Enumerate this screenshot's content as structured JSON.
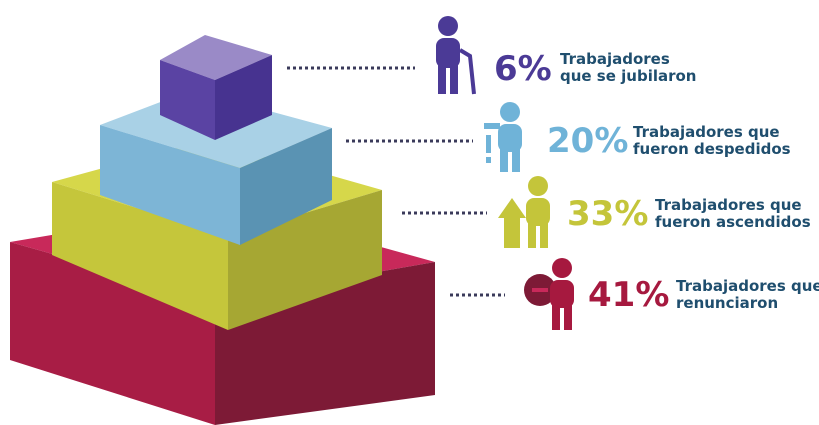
{
  "items": [
    {
      "value": "6%",
      "label": [
        "Trabajadores",
        "que se jubilaron"
      ]
    },
    {
      "value": "20%",
      "label": [
        "Trabajadores que",
        "fueron despedidos"
      ]
    },
    {
      "value": "33%",
      "label": [
        "Trabajadores que",
        "fueron ascendidos"
      ]
    },
    {
      "value": "41%",
      "label": [
        "Trabajadores que",
        "renunciaron"
      ]
    }
  ]
}
